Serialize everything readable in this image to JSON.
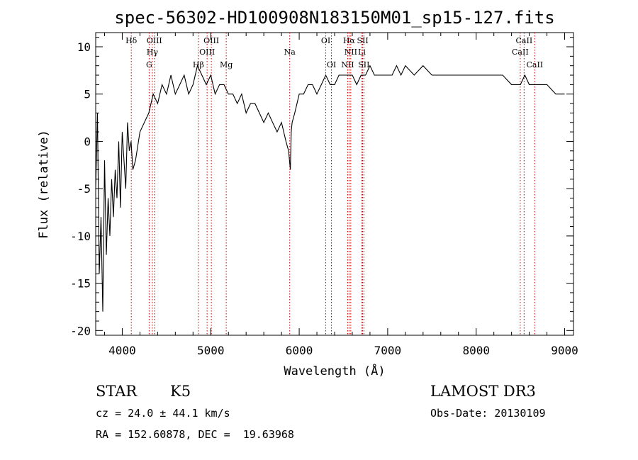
{
  "chart_data": {
    "type": "line",
    "title": "spec-56302-HD100908N183150M01_sp15-127.fits",
    "xlabel": "Wavelength (Å)",
    "ylabel": "Flux (relative)",
    "xlim": [
      3700,
      9100
    ],
    "ylim": [
      -20.5,
      11.5
    ],
    "xticks": [
      4000,
      5000,
      6000,
      7000,
      8000,
      9000
    ],
    "yticks": [
      -20,
      -15,
      -10,
      -5,
      0,
      5,
      10
    ],
    "grid": false,
    "legend": "none",
    "series": [
      {
        "x": [
          3700,
          3720,
          3740,
          3760,
          3780,
          3800,
          3820,
          3840,
          3860,
          3880,
          3900,
          3920,
          3940,
          3960,
          3980,
          4000,
          4020,
          4040,
          4060,
          4080,
          4100,
          4120,
          4150,
          4200,
          4250,
          4300,
          4350,
          4400,
          4450,
          4500,
          4550,
          4600,
          4650,
          4700,
          4750,
          4800,
          4850,
          4900,
          4950,
          5000,
          5050,
          5100,
          5150,
          5200,
          5250,
          5300,
          5350,
          5400,
          5450,
          5500,
          5550,
          5600,
          5650,
          5700,
          5750,
          5800,
          5850,
          5880,
          5900,
          5910,
          5920,
          5950,
          6000,
          6050,
          6100,
          6150,
          6200,
          6250,
          6300,
          6350,
          6400,
          6450,
          6500,
          6550,
          6600,
          6650,
          6700,
          6750,
          6800,
          6850,
          6900,
          6950,
          7000,
          7050,
          7100,
          7150,
          7200,
          7300,
          7400,
          7500,
          7600,
          7700,
          7800,
          7900,
          8000,
          8100,
          8200,
          8300,
          8400,
          8500,
          8550,
          8600,
          8650,
          8700,
          8800,
          8900,
          8950,
          9000
        ],
        "y": [
          -5,
          3,
          -14,
          -8,
          -18,
          -2,
          -12,
          -6,
          -10,
          -4,
          -8,
          -3,
          -6,
          0,
          -7,
          1,
          -2,
          -5,
          2,
          -1,
          0,
          -3,
          -2,
          1,
          2,
          3,
          5,
          4,
          6,
          5,
          7,
          5,
          6,
          7,
          5,
          6,
          8,
          7,
          6,
          7,
          5,
          6,
          6,
          5,
          5,
          4,
          5,
          3,
          4,
          4,
          3,
          2,
          3,
          2,
          1,
          2,
          0,
          -1,
          -3,
          1,
          2,
          3,
          5,
          5,
          6,
          6,
          5,
          6,
          7,
          6,
          6,
          7,
          7,
          7,
          7,
          6,
          7,
          7,
          8,
          7,
          7,
          7,
          7,
          7,
          8,
          7,
          8,
          7,
          8,
          7,
          7,
          7,
          7,
          7,
          7,
          7,
          7,
          7,
          6,
          6,
          7,
          6,
          6,
          6,
          6,
          5,
          5,
          5
        ]
      }
    ],
    "line_ids": [
      {
        "label": "Hδ",
        "x": 4102,
        "row": 0
      },
      {
        "label": "OIII",
        "x": 4363,
        "row": 0
      },
      {
        "label": "OIII",
        "x": 5007,
        "row": 0
      },
      {
        "label": "OI",
        "x": 6300,
        "row": 0
      },
      {
        "label": "Hα",
        "x": 6563,
        "row": 0
      },
      {
        "label": "SII",
        "x": 6717,
        "row": 0
      },
      {
        "label": "CaII",
        "x": 8542,
        "row": 0
      },
      {
        "label": "Hγ",
        "x": 4340,
        "row": 1
      },
      {
        "label": "OIII",
        "x": 4959,
        "row": 1
      },
      {
        "label": "Na",
        "x": 5893,
        "row": 1
      },
      {
        "label": "NII",
        "x": 6583,
        "row": 1
      },
      {
        "label": "Li",
        "x": 6708,
        "row": 1
      },
      {
        "label": "CaII",
        "x": 8498,
        "row": 1
      },
      {
        "label": "G",
        "x": 4304,
        "row": 2
      },
      {
        "label": "Hβ",
        "x": 4861,
        "row": 2
      },
      {
        "label": "Mg",
        "x": 5175,
        "row": 2
      },
      {
        "label": "OI",
        "x": 6364,
        "row": 2
      },
      {
        "label": "NII",
        "x": 6548,
        "row": 2
      },
      {
        "label": "SII",
        "x": 6731,
        "row": 2
      },
      {
        "label": "CaII",
        "x": 8662,
        "row": 2
      }
    ]
  },
  "info": {
    "object_class": "STAR",
    "subclass": "K5",
    "survey": "LAMOST DR3",
    "cz": "cz = 24.0 ± 44.1 km/s",
    "obs_date": "Obs-Date: 20130109",
    "radec": "RA = 152.60878, DEC =  19.63968"
  }
}
